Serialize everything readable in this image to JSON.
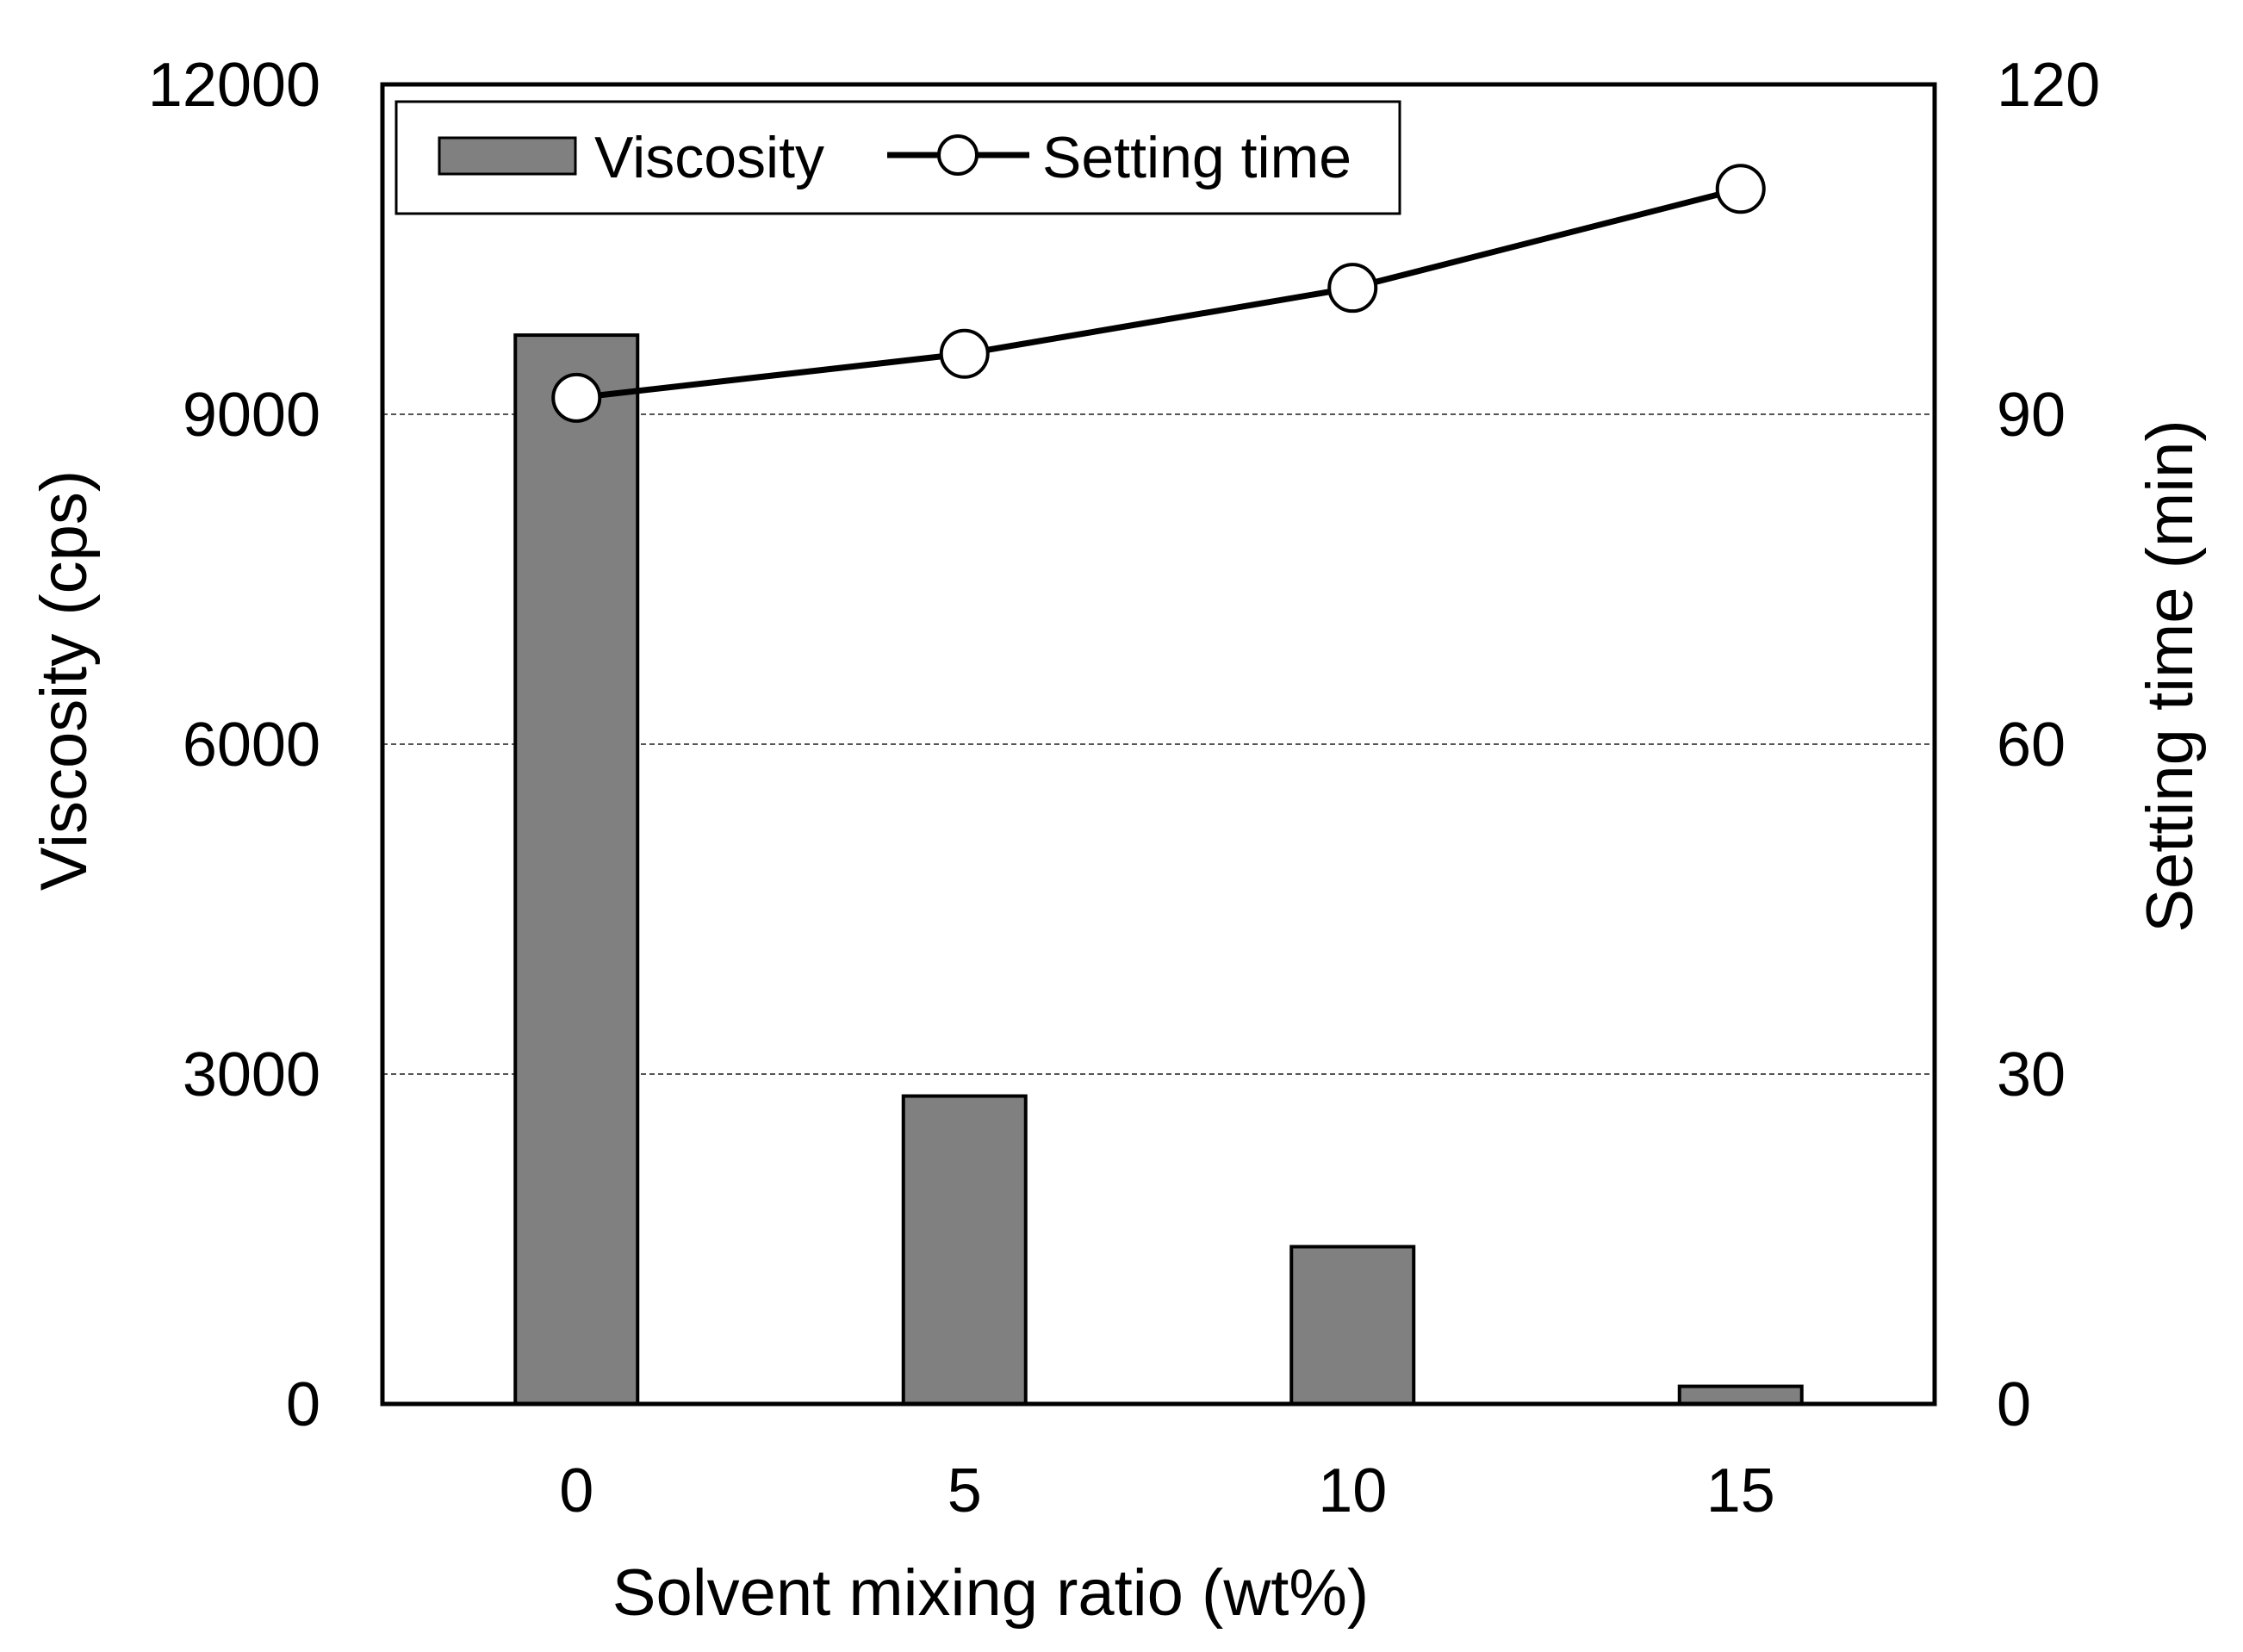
{
  "chart_data": {
    "type": "bar+line",
    "title": "",
    "xlabel": "Solvent mixing ratio (wt%)",
    "categories": [
      "0",
      "5",
      "10",
      "15"
    ],
    "y_left": {
      "label": "Viscosity (cps)",
      "range": [
        0,
        12000
      ],
      "ticks": [
        0,
        3000,
        6000,
        9000,
        12000
      ],
      "tick_labels": [
        "0",
        "3000",
        "6000",
        "9000",
        "12000"
      ]
    },
    "y_right": {
      "label": "Setting time (min)",
      "range": [
        0,
        120
      ],
      "ticks": [
        0,
        30,
        60,
        90,
        120
      ],
      "tick_labels": [
        "0",
        "30",
        "60",
        "90",
        "120"
      ]
    },
    "grid": "horizontal dashed at 3000, 6000, 9000",
    "legend_position": "top-left",
    "series": [
      {
        "name": "Viscosity",
        "kind": "bar",
        "axis": "left",
        "color": "#808080",
        "values": [
          9720,
          2800,
          1430,
          160
        ]
      },
      {
        "name": "Setting time",
        "kind": "line",
        "axis": "right",
        "color": "#000000",
        "marker_fill": "#ffffff",
        "values": [
          91.5,
          95.5,
          101.5,
          110.5
        ]
      }
    ]
  }
}
